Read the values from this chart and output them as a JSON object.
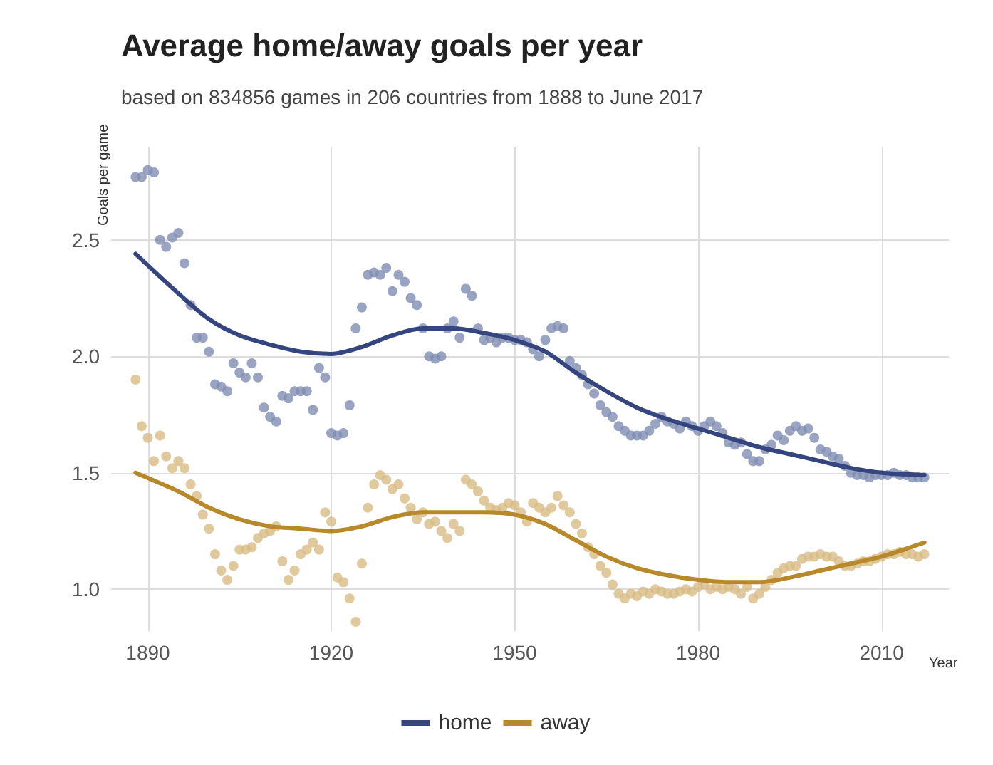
{
  "chart_data": {
    "type": "scatter",
    "title": "Average home/away goals per year",
    "subtitle": "based on 834856 games in 206 countries from 1888 to June 2017",
    "xlabel": "Year",
    "ylabel": "Goals per game",
    "x": [
      1888,
      1889,
      1890,
      1891,
      1892,
      1893,
      1894,
      1895,
      1896,
      1897,
      1898,
      1899,
      1900,
      1901,
      1902,
      1903,
      1904,
      1905,
      1906,
      1907,
      1908,
      1909,
      1910,
      1911,
      1912,
      1913,
      1914,
      1915,
      1916,
      1917,
      1918,
      1919,
      1920,
      1921,
      1922,
      1923,
      1924,
      1925,
      1926,
      1927,
      1928,
      1929,
      1930,
      1931,
      1932,
      1933,
      1934,
      1935,
      1936,
      1937,
      1938,
      1939,
      1940,
      1941,
      1942,
      1943,
      1944,
      1945,
      1946,
      1947,
      1948,
      1949,
      1950,
      1951,
      1952,
      1953,
      1954,
      1955,
      1956,
      1957,
      1958,
      1959,
      1960,
      1961,
      1962,
      1963,
      1964,
      1965,
      1966,
      1967,
      1968,
      1969,
      1970,
      1971,
      1972,
      1973,
      1974,
      1975,
      1976,
      1977,
      1978,
      1979,
      1980,
      1981,
      1982,
      1983,
      1984,
      1985,
      1986,
      1987,
      1988,
      1989,
      1990,
      1991,
      1992,
      1993,
      1994,
      1995,
      1996,
      1997,
      1998,
      1999,
      2000,
      2001,
      2002,
      2003,
      2004,
      2005,
      2006,
      2007,
      2008,
      2009,
      2010,
      2011,
      2012,
      2013,
      2014,
      2015,
      2016,
      2017
    ],
    "series": [
      {
        "color": "#7f8db3",
        "marker": "circle",
        "values": [
          2.77,
          2.77,
          2.8,
          2.79,
          2.5,
          2.47,
          2.51,
          2.53,
          2.4,
          2.22,
          2.08,
          2.08,
          2.02,
          1.88,
          1.87,
          1.85,
          1.97,
          1.93,
          1.91,
          1.97,
          1.91,
          1.78,
          1.74,
          1.72,
          1.83,
          1.82,
          1.85,
          1.85,
          1.85,
          1.77,
          1.95,
          1.91,
          1.67,
          1.66,
          1.67,
          1.79,
          2.12,
          2.21,
          2.35,
          2.36,
          2.35,
          2.38,
          2.28,
          2.35,
          2.32,
          2.25,
          2.22,
          2.12,
          2.0,
          1.99,
          2.0,
          2.12,
          2.15,
          2.08,
          2.29,
          2.26,
          2.12,
          2.07,
          2.08,
          2.06,
          2.08,
          2.08,
          2.07,
          2.07,
          2.06,
          2.03,
          2.0,
          2.07,
          2.12,
          2.13,
          2.12,
          1.98,
          1.95,
          1.92,
          1.88,
          1.84,
          1.79,
          1.76,
          1.74,
          1.7,
          1.68,
          1.66,
          1.66,
          1.66,
          1.68,
          1.71,
          1.74,
          1.72,
          1.71,
          1.69,
          1.72,
          1.7,
          1.68,
          1.7,
          1.72,
          1.7,
          1.67,
          1.63,
          1.62,
          1.63,
          1.58,
          1.55,
          1.55,
          1.6,
          1.62,
          1.66,
          1.64,
          1.68,
          1.7,
          1.68,
          1.69,
          1.65,
          1.6,
          1.59,
          1.57,
          1.56,
          1.53,
          1.5,
          1.49,
          1.49,
          1.48,
          1.49,
          1.49,
          1.49,
          1.5,
          1.49,
          1.49,
          1.48,
          1.48,
          1.48
        ]
      },
      {
        "color": "#d8bc84",
        "marker": "circle",
        "values": [
          1.9,
          1.7,
          1.65,
          1.55,
          1.66,
          1.57,
          1.52,
          1.55,
          1.52,
          1.45,
          1.4,
          1.32,
          1.26,
          1.15,
          1.08,
          1.04,
          1.1,
          1.17,
          1.17,
          1.18,
          1.22,
          1.24,
          1.25,
          1.27,
          1.12,
          1.04,
          1.08,
          1.15,
          1.17,
          1.2,
          1.17,
          1.33,
          1.29,
          1.05,
          1.03,
          0.96,
          0.86,
          1.11,
          1.35,
          1.45,
          1.49,
          1.47,
          1.43,
          1.45,
          1.39,
          1.35,
          1.3,
          1.33,
          1.28,
          1.29,
          1.25,
          1.22,
          1.28,
          1.25,
          1.47,
          1.45,
          1.42,
          1.38,
          1.35,
          1.34,
          1.35,
          1.37,
          1.36,
          1.33,
          1.29,
          1.37,
          1.35,
          1.33,
          1.35,
          1.4,
          1.36,
          1.33,
          1.28,
          1.24,
          1.18,
          1.15,
          1.1,
          1.07,
          1.02,
          0.98,
          0.96,
          0.98,
          0.97,
          0.99,
          0.98,
          1.0,
          0.99,
          0.98,
          0.98,
          0.99,
          1.0,
          0.99,
          1.01,
          1.02,
          1.0,
          1.01,
          1.0,
          1.01,
          1.0,
          0.98,
          1.01,
          0.96,
          0.98,
          1.01,
          1.04,
          1.07,
          1.09,
          1.1,
          1.1,
          1.13,
          1.14,
          1.14,
          1.15,
          1.14,
          1.14,
          1.12,
          1.1,
          1.1,
          1.11,
          1.12,
          1.12,
          1.13,
          1.14,
          1.15,
          1.15,
          1.16,
          1.15,
          1.15,
          1.14,
          1.15
        ]
      },
      {
        "type": "line",
        "name": "home",
        "color": "#34457f",
        "marker": "none",
        "line_style": "solid",
        "x": [
          1888,
          1895,
          1900,
          1905,
          1910,
          1915,
          1920,
          1925,
          1930,
          1935,
          1940,
          1945,
          1950,
          1955,
          1960,
          1965,
          1970,
          1975,
          1980,
          1985,
          1990,
          1995,
          2000,
          2005,
          2010,
          2017
        ],
        "values": [
          2.44,
          2.27,
          2.16,
          2.09,
          2.05,
          2.02,
          2.01,
          2.04,
          2.09,
          2.12,
          2.12,
          2.1,
          2.07,
          2.02,
          1.93,
          1.85,
          1.78,
          1.73,
          1.69,
          1.65,
          1.61,
          1.58,
          1.55,
          1.52,
          1.5,
          1.49
        ]
      },
      {
        "type": "line",
        "name": "away",
        "color": "#b8892a",
        "marker": "none",
        "line_style": "solid",
        "x": [
          1888,
          1895,
          1900,
          1905,
          1910,
          1915,
          1920,
          1925,
          1930,
          1935,
          1940,
          1945,
          1950,
          1955,
          1960,
          1965,
          1970,
          1975,
          1980,
          1985,
          1990,
          1995,
          2000,
          2005,
          2010,
          2017
        ],
        "values": [
          1.5,
          1.42,
          1.35,
          1.3,
          1.27,
          1.26,
          1.25,
          1.27,
          1.31,
          1.33,
          1.33,
          1.33,
          1.32,
          1.28,
          1.21,
          1.14,
          1.09,
          1.06,
          1.04,
          1.03,
          1.03,
          1.05,
          1.08,
          1.11,
          1.14,
          1.2
        ]
      }
    ],
    "xlim": [
      1884,
      2021
    ],
    "xticks": [
      1890,
      1920,
      1950,
      1980,
      2010
    ],
    "ylim": [
      0.82,
      2.9
    ],
    "yticks": [
      {
        "value": 1,
        "label": "1.0"
      },
      1.5,
      {
        "value": 2,
        "label": "2.0"
      },
      2.5
    ],
    "grid": true,
    "legend": "bottom"
  }
}
